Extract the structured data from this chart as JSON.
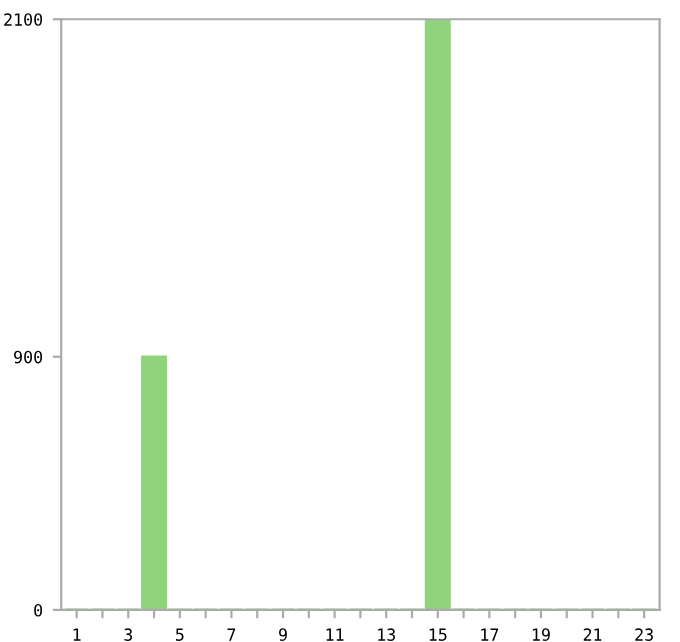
{
  "chart_data": {
    "type": "bar",
    "categories": [
      "1",
      null,
      "3",
      null,
      "5",
      null,
      "7",
      null,
      "9",
      null,
      "11",
      null,
      "13",
      null,
      "15",
      null,
      "17",
      null,
      "19",
      null,
      "21",
      null,
      "23"
    ],
    "values": [
      0,
      0,
      0,
      900,
      0,
      0,
      0,
      0,
      0,
      0,
      0,
      0,
      0,
      0,
      2100,
      0,
      0,
      0,
      0,
      0,
      0,
      0,
      0
    ],
    "color": "#8fd47c",
    "ylim": [
      0,
      2100
    ],
    "yticks": [
      0,
      900,
      2100
    ],
    "grid": false
  }
}
